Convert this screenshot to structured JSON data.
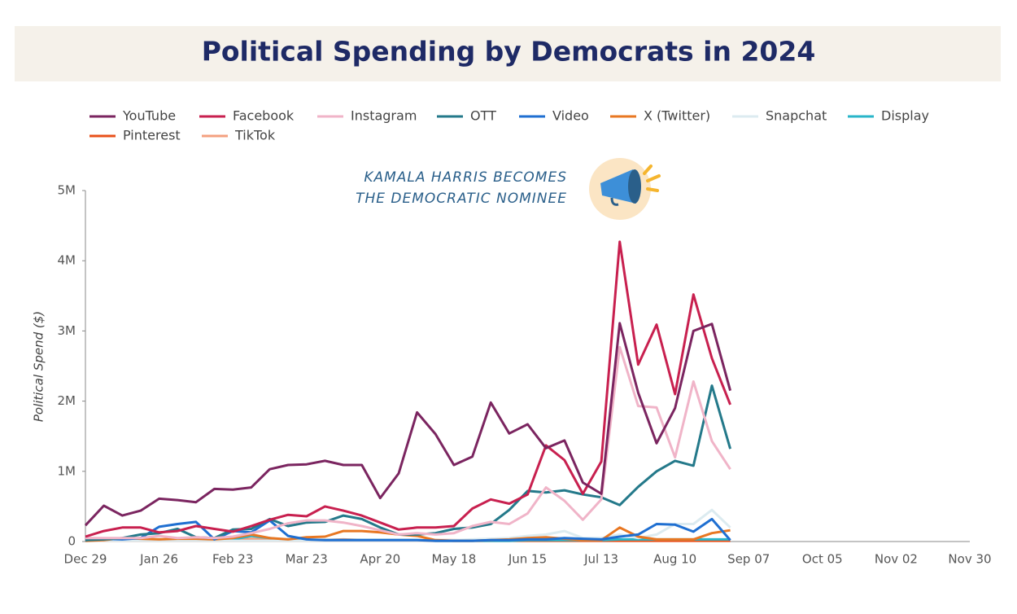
{
  "chart_data": {
    "type": "line",
    "title": "Political Spending by Democrats in 2024",
    "y_label": "Political Spend ($)",
    "annotations": [
      "KAMALA HARRIS BECOMES",
      "THE DEMOCRATIC NOMINEE"
    ],
    "categories": [
      "Dec 29",
      null,
      null,
      null,
      "Jan 26",
      null,
      null,
      null,
      "Feb 23",
      null,
      null,
      null,
      "Mar 23",
      null,
      null,
      null,
      "Apr 20",
      null,
      null,
      null,
      "May 18",
      null,
      null,
      null,
      "Jun 15",
      null,
      null,
      null,
      "Jul 13",
      null,
      null,
      null,
      "Aug 10",
      null,
      null,
      null,
      "Sep 07",
      null,
      null,
      null,
      "Oct 05",
      null,
      null,
      null,
      "Nov 02",
      null,
      null,
      null,
      "Nov 30"
    ],
    "ylim": [
      0,
      5
    ],
    "yticks": [
      0,
      {
        "value": 1,
        "label": "1M"
      },
      {
        "value": 2,
        "label": "2M"
      },
      {
        "value": 3,
        "label": "3M"
      },
      {
        "value": 4,
        "label": "4M"
      },
      {
        "value": 5,
        "label": "5M"
      }
    ],
    "series": [
      {
        "name": "YouTube",
        "color": "#7b2560",
        "values": [
          0.23,
          0.51,
          0.37,
          0.44,
          0.61,
          0.59,
          0.56,
          0.75,
          0.74,
          0.77,
          1.03,
          1.09,
          1.1,
          1.15,
          1.09,
          1.09,
          0.62,
          0.97,
          1.84,
          1.53,
          1.09,
          1.21,
          1.98,
          1.54,
          1.67,
          1.33,
          1.44,
          0.84,
          0.68,
          3.11,
          2.12,
          1.4,
          1.9,
          3.0,
          3.1,
          2.15,
          null,
          null,
          null,
          null,
          null,
          null,
          null,
          null,
          null,
          null,
          null,
          null,
          null
        ]
      },
      {
        "name": "Facebook",
        "color": "#c8204f",
        "values": [
          0.07,
          0.15,
          0.2,
          0.2,
          0.13,
          0.15,
          0.22,
          0.18,
          0.14,
          0.22,
          0.31,
          0.38,
          0.36,
          0.5,
          0.44,
          0.37,
          0.27,
          0.17,
          0.2,
          0.2,
          0.22,
          0.47,
          0.6,
          0.54,
          0.67,
          1.37,
          1.16,
          0.68,
          1.14,
          4.27,
          2.52,
          3.09,
          2.1,
          3.52,
          2.61,
          1.95,
          null,
          null,
          null,
          null,
          null,
          null,
          null,
          null,
          null,
          null,
          null,
          null,
          null
        ]
      },
      {
        "name": "Instagram",
        "color": "#f0b4c8",
        "values": [
          0.05,
          0.05,
          0.05,
          0.05,
          0.08,
          0.05,
          0.06,
          0.05,
          0.07,
          0.12,
          0.18,
          0.26,
          0.3,
          0.3,
          0.27,
          0.22,
          0.16,
          0.1,
          0.12,
          0.1,
          0.12,
          0.22,
          0.28,
          0.25,
          0.4,
          0.77,
          0.58,
          0.31,
          0.6,
          2.77,
          1.93,
          1.91,
          1.2,
          2.28,
          1.43,
          1.03,
          null,
          null,
          null,
          null,
          null,
          null,
          null,
          null,
          null,
          null,
          null,
          null,
          null
        ]
      },
      {
        "name": "OTT",
        "color": "#24798a",
        "values": [
          0.02,
          0.03,
          0.05,
          0.1,
          0.12,
          0.18,
          0.06,
          0.05,
          0.17,
          0.18,
          0.32,
          0.22,
          0.27,
          0.28,
          0.37,
          0.32,
          0.2,
          0.1,
          0.1,
          0.12,
          0.18,
          0.2,
          0.25,
          0.45,
          0.72,
          0.7,
          0.73,
          0.67,
          0.63,
          0.52,
          0.78,
          1.0,
          1.15,
          1.08,
          2.22,
          1.32,
          null,
          null,
          null,
          null,
          null,
          null,
          null,
          null,
          null,
          null,
          null,
          null,
          null
        ]
      },
      {
        "name": "Video",
        "color": "#1f6fd1",
        "values": [
          0.02,
          0.04,
          0.03,
          0.05,
          0.21,
          0.25,
          0.28,
          0.03,
          0.15,
          0.13,
          0.3,
          0.08,
          0.03,
          0.02,
          0.02,
          0.02,
          0.02,
          0.02,
          0.02,
          0.01,
          0.01,
          0.01,
          0.02,
          0.02,
          0.03,
          0.03,
          0.05,
          0.04,
          0.03,
          0.07,
          0.1,
          0.25,
          0.24,
          0.14,
          0.32,
          0.02,
          null,
          null,
          null,
          null,
          null,
          null,
          null,
          null,
          null,
          null,
          null,
          null,
          null
        ]
      },
      {
        "name": "X (Twitter)",
        "color": "#e87722",
        "values": [
          0.01,
          0.02,
          0.05,
          0.04,
          0.03,
          0.04,
          0.04,
          0.03,
          0.05,
          0.1,
          0.05,
          0.03,
          0.06,
          0.07,
          0.15,
          0.15,
          0.13,
          0.1,
          0.08,
          0.02,
          0.01,
          0.01,
          0.02,
          0.03,
          0.05,
          0.06,
          0.04,
          0.02,
          0.02,
          0.2,
          0.07,
          0.03,
          0.03,
          0.03,
          0.12,
          0.16,
          null,
          null,
          null,
          null,
          null,
          null,
          null,
          null,
          null,
          null,
          null,
          null,
          null
        ]
      },
      {
        "name": "Snapchat",
        "color": "#dcebf0",
        "values": [
          0.01,
          0.01,
          0.01,
          0.01,
          0.01,
          0.01,
          0.01,
          0.01,
          0.01,
          0.01,
          0.01,
          0.01,
          0.01,
          0.01,
          0.01,
          0.01,
          0.01,
          0.01,
          0.01,
          0.01,
          0.02,
          0.03,
          0.04,
          0.05,
          0.08,
          0.1,
          0.15,
          0.05,
          0.05,
          0.1,
          0.05,
          0.1,
          0.25,
          0.25,
          0.45,
          0.2,
          null,
          null,
          null,
          null,
          null,
          null,
          null,
          null,
          null,
          null,
          null,
          null,
          null
        ]
      },
      {
        "name": "Display",
        "color": "#29b5c9",
        "values": [
          0.01,
          0.02,
          0.02,
          0.03,
          0.03,
          0.02,
          0.02,
          0.02,
          0.03,
          0.08,
          0.05,
          0.02,
          0.02,
          0.02,
          0.02,
          0.02,
          0.02,
          0.02,
          0.02,
          0.01,
          0.01,
          0.01,
          0.01,
          0.01,
          0.02,
          0.02,
          0.02,
          0.02,
          0.02,
          0.03,
          0.03,
          0.03,
          0.03,
          0.03,
          0.03,
          0.03,
          null,
          null,
          null,
          null,
          null,
          null,
          null,
          null,
          null,
          null,
          null,
          null,
          null
        ]
      },
      {
        "name": "Pinterest",
        "color": "#e8501a",
        "values": [
          0.01,
          0.01,
          0.01,
          0.01,
          0.01,
          0.01,
          0.01,
          0.01,
          0.01,
          0.01,
          0.01,
          0.01,
          0.01,
          0.01,
          0.01,
          0.01,
          0.01,
          0.01,
          0.01,
          0.01,
          0.01,
          0.01,
          0.01,
          0.01,
          0.01,
          0.01,
          0.01,
          0.01,
          0.01,
          0.01,
          0.01,
          0.01,
          0.01,
          0.01,
          0.01,
          0.01,
          null,
          null,
          null,
          null,
          null,
          null,
          null,
          null,
          null,
          null,
          null,
          null,
          null
        ]
      },
      {
        "name": "TikTok",
        "color": "#f4a080",
        "values": [
          0.02,
          0.02,
          0.03,
          0.02,
          0.02,
          0.02,
          0.03,
          0.02,
          0.02,
          0.04,
          0.03,
          0.02,
          0.02,
          0.02,
          0.03,
          0.02,
          0.02,
          0.02,
          0.02,
          0.02,
          0.02,
          0.02,
          0.02,
          0.02,
          0.02,
          0.02,
          0.02,
          0.02,
          0.02,
          0.02,
          0.02,
          0.02,
          0.02,
          0.02,
          0.02,
          0.02,
          null,
          null,
          null,
          null,
          null,
          null,
          null,
          null,
          null,
          null,
          null,
          null,
          null
        ]
      }
    ]
  }
}
